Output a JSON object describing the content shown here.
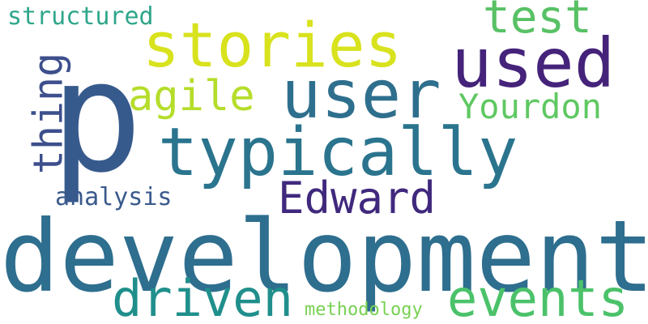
{
  "word_cloud": {
    "words": [
      {
        "id": "structured",
        "text": "structured",
        "color": "#2fa68a"
      },
      {
        "id": "test",
        "text": "test",
        "color": "#58c165"
      },
      {
        "id": "stories",
        "text": "stories",
        "color": "#d8e21d"
      },
      {
        "id": "used",
        "text": "used",
        "color": "#45237a"
      },
      {
        "id": "thing",
        "text": "thing",
        "color": "#3d4f8c",
        "orientation": "vertical"
      },
      {
        "id": "p",
        "text": "p",
        "color": "#375a8c"
      },
      {
        "id": "agile",
        "text": "agile",
        "color": "#b5dd2b"
      },
      {
        "id": "user",
        "text": "user",
        "color": "#2f6f8e"
      },
      {
        "id": "yourdon",
        "text": "Yourdon",
        "color": "#5fc862"
      },
      {
        "id": "typically",
        "text": "typically",
        "color": "#2a748e"
      },
      {
        "id": "edward",
        "text": "Edward",
        "color": "#40297d"
      },
      {
        "id": "analysis",
        "text": "analysis",
        "color": "#3a5a8c"
      },
      {
        "id": "development",
        "text": "development",
        "color": "#2e6e8e"
      },
      {
        "id": "driven",
        "text": "driven",
        "color": "#208f8c"
      },
      {
        "id": "events",
        "text": "events",
        "color": "#4bc26a"
      },
      {
        "id": "methodology",
        "text": "methodology",
        "color": "#78d152"
      }
    ]
  }
}
